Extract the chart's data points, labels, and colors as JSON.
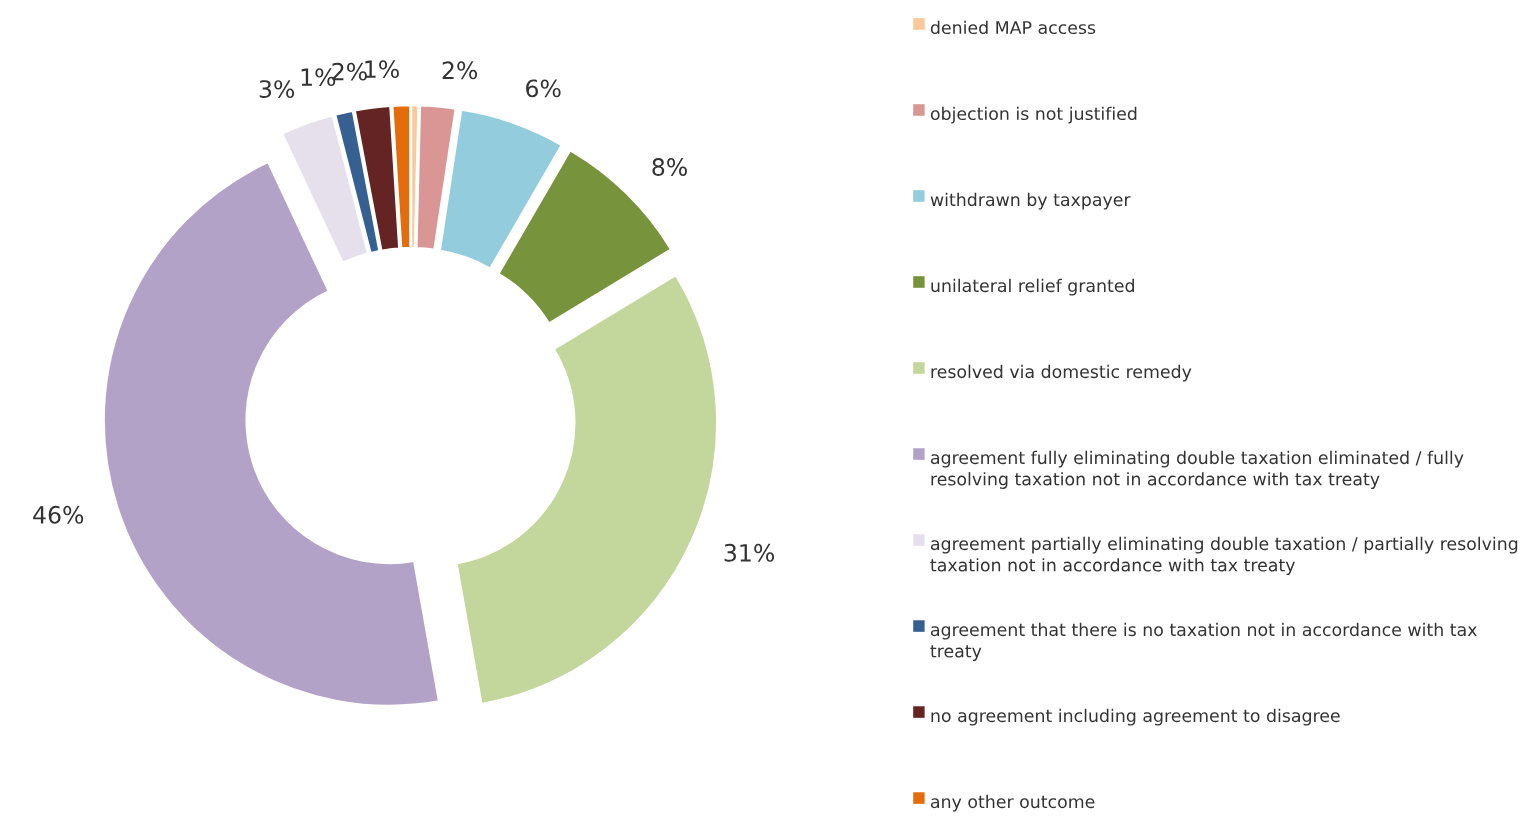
{
  "chart_data": {
    "type": "donut",
    "legend": "right",
    "categories": [
      "denied MAP access",
      "objection is not justified",
      "withdrawn by taxpayer",
      "unilateral relief granted",
      "resolved via domestic remedy",
      "agreement fully eliminating double taxation eliminated / fully resolving taxation not in accordance with tax treaty",
      "agreement partially eliminating double taxation / partially resolving taxation not in accordance with tax treaty",
      "agreement that there is no taxation not in accordance with tax treaty",
      "no agreement including agreement to disagree",
      "any other outcome"
    ],
    "values": [
      0.4,
      2,
      6,
      8,
      31,
      46,
      3,
      1,
      2,
      1
    ],
    "value_labels": [
      null,
      "2%",
      "6%",
      "8%",
      "31%",
      "46%",
      "3%",
      "1%",
      "2%",
      "1%"
    ],
    "colors": [
      "#f9c89b",
      "#d99694",
      "#93cddd",
      "#77933c",
      "#c3d69b",
      "#b3a2c7",
      "#e6e0ec",
      "#366092",
      "#632423",
      "#e46c0a"
    ]
  }
}
